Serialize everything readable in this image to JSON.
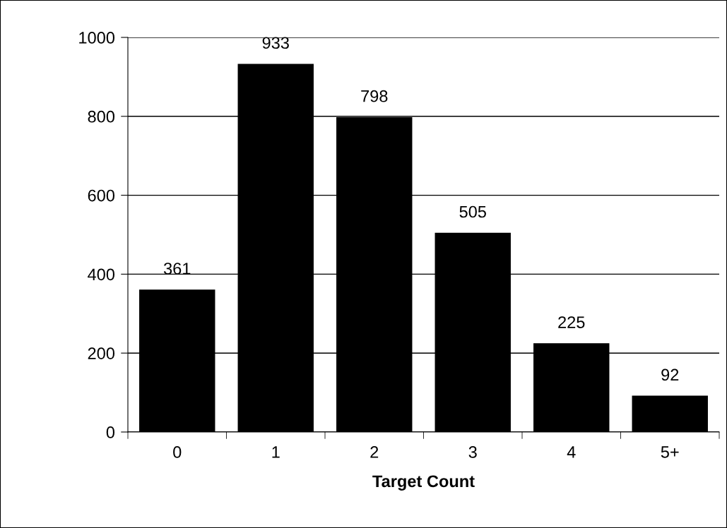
{
  "chart_data": {
    "type": "bar",
    "xlabel": "Target Count",
    "categories": [
      "0",
      "1",
      "2",
      "3",
      "4",
      "5+"
    ],
    "values": [
      361,
      933,
      798,
      505,
      225,
      92
    ],
    "color": "#000000",
    "ylim": [
      0,
      1000
    ],
    "yticks": [
      0,
      200,
      400,
      600,
      800,
      1000
    ],
    "grid": "y",
    "data_labels": true
  }
}
